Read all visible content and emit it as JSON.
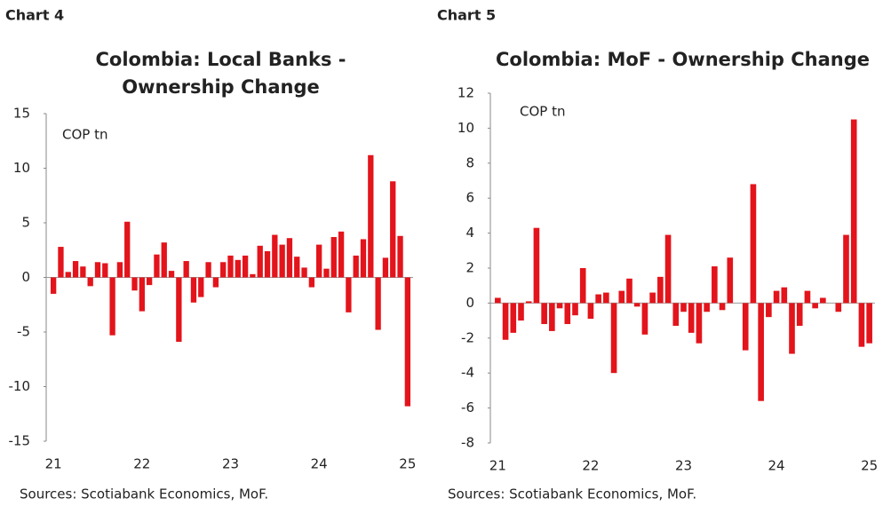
{
  "chart_data": [
    {
      "type": "bar",
      "label": "Chart 4",
      "title": [
        "Colombia: Local Banks -",
        "Ownership Change"
      ],
      "unit": "COP tn",
      "categories": [
        "21",
        null,
        null,
        null,
        null,
        null,
        null,
        null,
        null,
        null,
        null,
        null,
        "22",
        null,
        null,
        null,
        null,
        null,
        null,
        null,
        null,
        null,
        null,
        null,
        "23",
        null,
        null,
        null,
        null,
        null,
        null,
        null,
        null,
        null,
        null,
        null,
        "24",
        null,
        null,
        null,
        null,
        null,
        null,
        null,
        null,
        null,
        null,
        null,
        "25"
      ],
      "values": [
        -1.5,
        2.8,
        0.5,
        1.5,
        1.0,
        -0.8,
        1.4,
        1.3,
        -5.3,
        1.4,
        5.1,
        -1.2,
        -3.1,
        -0.7,
        2.1,
        3.2,
        0.6,
        -5.9,
        1.5,
        -2.3,
        -1.8,
        1.4,
        -0.9,
        1.4,
        2.0,
        1.6,
        2.0,
        0.3,
        2.9,
        2.4,
        3.9,
        3.0,
        3.6,
        1.9,
        0.9,
        -0.9,
        3.0,
        0.8,
        3.7,
        4.2,
        -3.2,
        2.0,
        3.5,
        11.2,
        -4.8,
        1.8,
        8.8,
        3.8,
        -11.8
      ],
      "color": "#e3141b",
      "ylim": [
        -15,
        15
      ],
      "yticks": [
        -15,
        -10,
        -5,
        0,
        5,
        10,
        15
      ],
      "source": "Sources: Scotiabank Economics, MoF."
    },
    {
      "type": "bar",
      "label": "Chart 5",
      "title": [
        "Colombia: MoF - Ownership Change"
      ],
      "unit": "COP tn",
      "categories": [
        "21",
        null,
        null,
        null,
        null,
        null,
        null,
        null,
        null,
        null,
        null,
        null,
        "22",
        null,
        null,
        null,
        null,
        null,
        null,
        null,
        null,
        null,
        null,
        null,
        "23",
        null,
        null,
        null,
        null,
        null,
        null,
        null,
        null,
        null,
        null,
        null,
        "24",
        null,
        null,
        null,
        null,
        null,
        null,
        null,
        null,
        null,
        null,
        null,
        "25"
      ],
      "values": [
        0.3,
        -2.1,
        -1.7,
        -1.0,
        0.1,
        4.3,
        -1.2,
        -1.6,
        -0.3,
        -1.2,
        -0.7,
        2.0,
        -0.9,
        0.5,
        0.6,
        -4.0,
        0.7,
        1.4,
        -0.2,
        -1.8,
        0.6,
        1.5,
        3.9,
        -1.3,
        -0.5,
        -1.7,
        -2.3,
        -0.5,
        2.1,
        -0.4,
        2.6,
        0.0,
        -2.7,
        6.8,
        -5.6,
        -0.8,
        0.7,
        0.9,
        -2.9,
        -1.3,
        0.7,
        -0.3,
        0.3,
        0.0,
        -0.5,
        3.9,
        10.5,
        -2.5,
        -2.3
      ],
      "color": "#e3141b",
      "ylim": [
        -8,
        12
      ],
      "yticks": [
        -8,
        -6,
        -4,
        -2,
        0,
        2,
        4,
        6,
        8,
        10,
        12
      ],
      "source": "Sources: Scotiabank Economics, MoF."
    }
  ]
}
